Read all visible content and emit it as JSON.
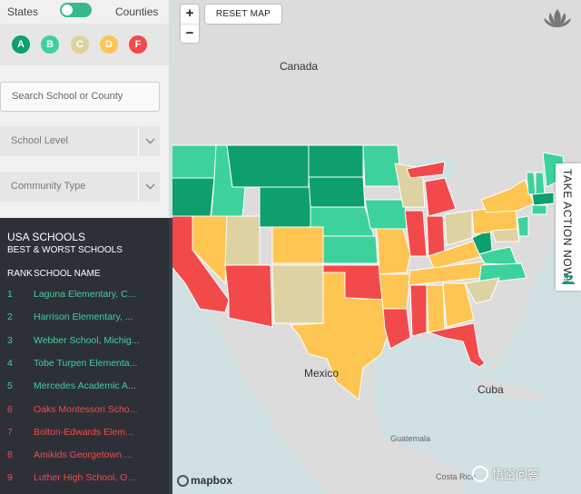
{
  "toggle": {
    "left_label": "States",
    "right_label": "Counties"
  },
  "grades": [
    {
      "label": "A",
      "color": "#0e9f6e"
    },
    {
      "label": "B",
      "color": "#3dd29b"
    },
    {
      "label": "C",
      "color": "#ddd2a2"
    },
    {
      "label": "D",
      "color": "#ffc552"
    },
    {
      "label": "F",
      "color": "#f24a4a"
    }
  ],
  "search": {
    "placeholder": "Search School or County"
  },
  "filters": {
    "school_level": "School Level",
    "community_type": "Community Type"
  },
  "list": {
    "title": "USA SCHOOLS",
    "subtitle": "BEST & WORST SCHOOLS",
    "rank_header": "RANK",
    "name_header": "SCHOOL NAME",
    "rows": [
      {
        "rank": "1",
        "name": "Laguna Elementary, C...",
        "color": "#3dd29b"
      },
      {
        "rank": "2",
        "name": "Harrison Elementary, ...",
        "color": "#3dd29b"
      },
      {
        "rank": "3",
        "name": "Webber School, Michig...",
        "color": "#3dd29b"
      },
      {
        "rank": "4",
        "name": "Tobe Turpen Elementa...",
        "color": "#3dd29b"
      },
      {
        "rank": "5",
        "name": "Mercedes Academic A...",
        "color": "#3dd29b"
      },
      {
        "rank": "6",
        "name": "Oaks Montessori Scho...",
        "color": "#f24a4a"
      },
      {
        "rank": "7",
        "name": "Bolton-Edwards Elem...",
        "color": "#f24a4a"
      },
      {
        "rank": "8",
        "name": "Amikids Georgetown ...",
        "color": "#f24a4a"
      },
      {
        "rank": "9",
        "name": "Luther High School, O...",
        "color": "#f24a4a"
      }
    ]
  },
  "map": {
    "zoom_in": "+",
    "zoom_out": "−",
    "reset_label": "RESET MAP",
    "labels": {
      "canada": "Canada",
      "mexico": "Mexico",
      "cuba": "Cuba",
      "guatemala": "Guatemala",
      "costa_rica": "Costa Rica"
    },
    "attribution": "mapbox",
    "take_action": "TAKE ACTION NOW!"
  },
  "watermark": "悟空问答"
}
